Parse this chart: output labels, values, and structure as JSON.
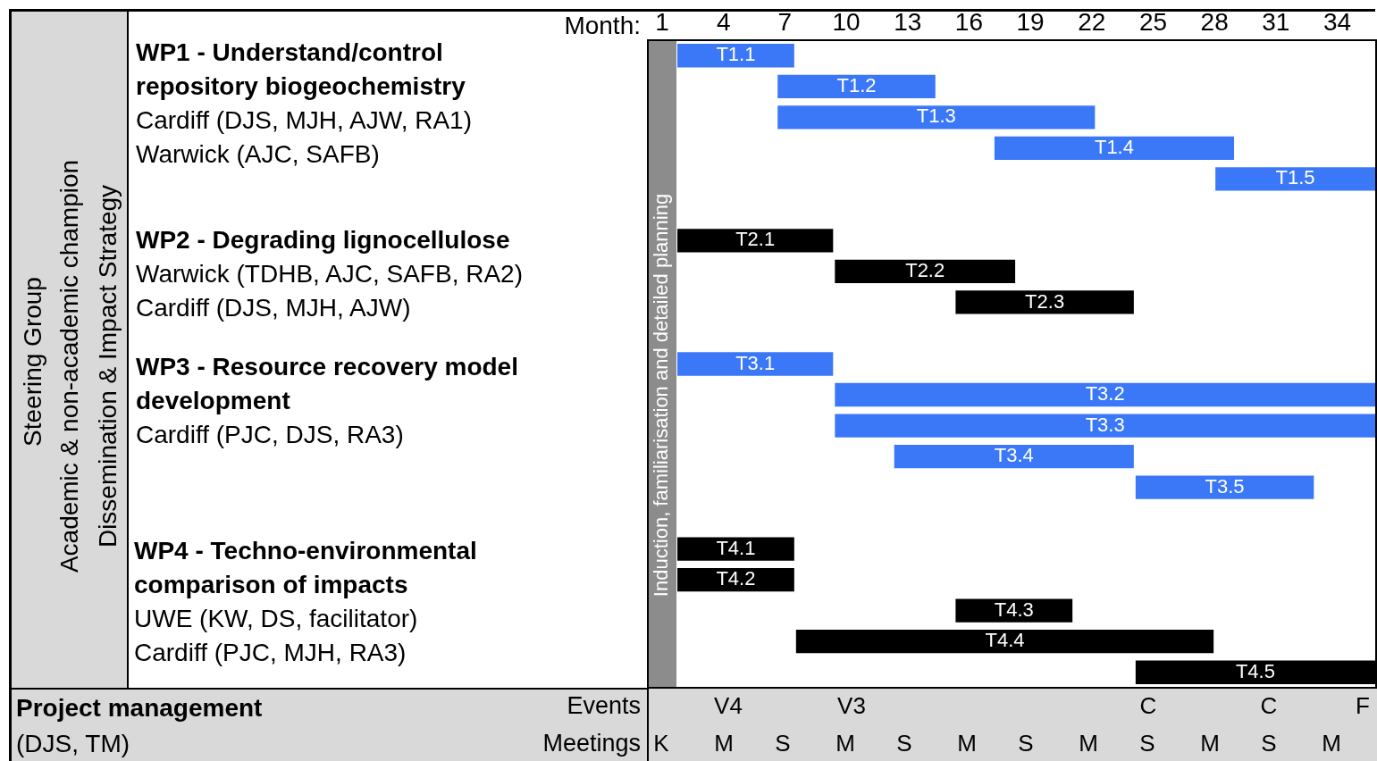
{
  "chart_data": {
    "type": "bar",
    "orientation": "horizontal",
    "xlabel": "Month:",
    "categories": [
      "T1.1",
      "T1.2",
      "T1.3",
      "T1.4",
      "T1.5",
      null,
      "T2.1",
      "T2.2",
      "T2.3",
      null,
      "T3.1",
      "T3.2",
      "T3.3",
      "T3.4",
      "T3.5",
      null,
      "T4.1",
      "T4.2",
      "T4.3",
      "T4.4",
      "T4.5"
    ],
    "base": [
      1.7,
      6.6,
      6.6,
      17.2,
      28.0,
      null,
      1.7,
      9.4,
      15.3,
      null,
      1.7,
      9.4,
      9.4,
      12.3,
      24.1,
      null,
      1.7,
      1.7,
      15.3,
      7.5,
      24.1
    ],
    "values": [
      5.8,
      7.8,
      15.6,
      11.8,
      7.9,
      null,
      7.7,
      8.9,
      8.8,
      null,
      7.7,
      26.5,
      26.5,
      11.8,
      8.8,
      null,
      5.8,
      5.8,
      5.8,
      20.5,
      11.8
    ],
    "colors": [
      "#3b78f7",
      "#3b78f7",
      "#3b78f7",
      "#3b78f7",
      "#3b78f7",
      null,
      "#000000",
      "#000000",
      "#000000",
      null,
      "#3b78f7",
      "#3b78f7",
      "#3b78f7",
      "#3b78f7",
      "#3b78f7",
      null,
      "#000000",
      "#000000",
      "#000000",
      "#000000",
      "#000000"
    ],
    "xlim": [
      0.3,
      35.9
    ],
    "xticks": [
      1,
      4,
      7,
      10,
      13,
      16,
      19,
      22,
      25,
      28,
      31,
      34
    ],
    "bands": [
      {
        "axis": "x",
        "from": 0.3,
        "to": 1.7,
        "label": "Induction, familiarisation and detailed planning",
        "color": "#8c8c8c"
      }
    ],
    "annotations": [
      "Steering Group",
      "Academic & non-academic champion",
      "Dissemination & Impact Strategy",
      "WP1 - Understand/control repository biogeochemistry",
      "Cardiff (DJS, MJH, AJW, RA1)",
      "Warwick (AJC, SAFB)",
      "WP2 - Degrading lignocellulose",
      "Warwick (TDHB, AJC, SAFB, RA2)",
      "Cardiff (DJS, MJH, AJW)",
      "WP3 - Resource recovery model development",
      "Cardiff (PJC, DJS, RA3)",
      "WP4 - Techno-environmental comparison of impacts",
      "UWE (KW, DS, facilitator)",
      "Cardiff (PJC, MJH, RA3)",
      "Project management",
      "(DJS, TM)",
      "Events",
      "Meetings",
      "V4",
      "V3",
      "C",
      "C",
      "F",
      "K",
      "M",
      "S",
      "M",
      "S",
      "M",
      "S",
      "M",
      "S",
      "M",
      "S",
      "M"
    ]
  }
}
